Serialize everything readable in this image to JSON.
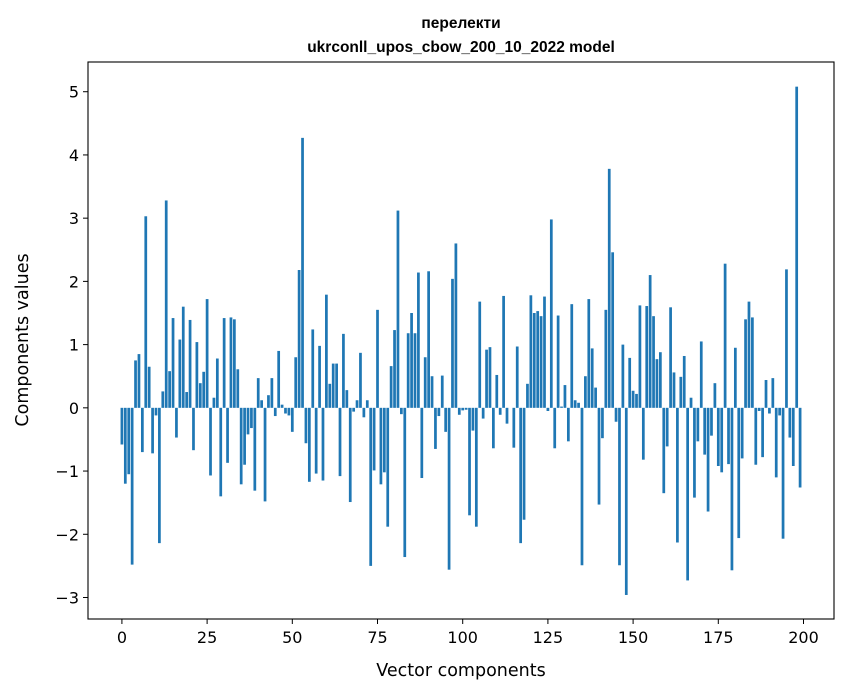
{
  "chart_data": {
    "type": "bar",
    "title_lines": [
      "перелекти",
      "ukrconll_upos_cbow_200_10_2022 model"
    ],
    "xlabel": "Vector components",
    "ylabel": "Components values",
    "xlim": [
      -9.95,
      208.95
    ],
    "ylim": [
      -3.34,
      5.47
    ],
    "xticks": [
      0,
      25,
      50,
      75,
      100,
      125,
      150,
      175,
      200
    ],
    "yticks": [
      -3,
      -2,
      -1,
      0,
      1,
      2,
      3,
      4,
      5
    ],
    "grid": false,
    "legend": "none",
    "bar_color": "#1f77b4",
    "x": [
      0,
      1,
      2,
      3,
      4,
      5,
      6,
      7,
      8,
      9,
      10,
      11,
      12,
      13,
      14,
      15,
      16,
      17,
      18,
      19,
      20,
      21,
      22,
      23,
      24,
      25,
      26,
      27,
      28,
      29,
      30,
      31,
      32,
      33,
      34,
      35,
      36,
      37,
      38,
      39,
      40,
      41,
      42,
      43,
      44,
      45,
      46,
      47,
      48,
      49,
      50,
      51,
      52,
      53,
      54,
      55,
      56,
      57,
      58,
      59,
      60,
      61,
      62,
      63,
      64,
      65,
      66,
      67,
      68,
      69,
      70,
      71,
      72,
      73,
      74,
      75,
      76,
      77,
      78,
      79,
      80,
      81,
      82,
      83,
      84,
      85,
      86,
      87,
      88,
      89,
      90,
      91,
      92,
      93,
      94,
      95,
      96,
      97,
      98,
      99,
      100,
      101,
      102,
      103,
      104,
      105,
      106,
      107,
      108,
      109,
      110,
      111,
      112,
      113,
      114,
      115,
      116,
      117,
      118,
      119,
      120,
      121,
      122,
      123,
      124,
      125,
      126,
      127,
      128,
      129,
      130,
      131,
      132,
      133,
      134,
      135,
      136,
      137,
      138,
      139,
      140,
      141,
      142,
      143,
      144,
      145,
      146,
      147,
      148,
      149,
      150,
      151,
      152,
      153,
      154,
      155,
      156,
      157,
      158,
      159,
      160,
      161,
      162,
      163,
      164,
      165,
      166,
      167,
      168,
      169,
      170,
      171,
      172,
      173,
      174,
      175,
      176,
      177,
      178,
      179,
      180,
      181,
      182,
      183,
      184,
      185,
      186,
      187,
      188,
      189,
      190,
      191,
      192,
      193,
      194,
      195,
      196,
      197,
      198,
      199
    ],
    "values": [
      -0.58,
      -1.2,
      -1.05,
      -2.48,
      0.75,
      0.85,
      -0.7,
      3.03,
      0.65,
      -0.72,
      -0.12,
      -2.14,
      0.26,
      3.28,
      0.58,
      1.42,
      -0.47,
      1.08,
      1.6,
      0.25,
      1.39,
      -0.67,
      1.04,
      0.39,
      0.57,
      1.72,
      -1.07,
      0.16,
      0.78,
      -1.4,
      1.42,
      -0.87,
      1.43,
      1.4,
      0.61,
      -1.21,
      -0.9,
      -0.42,
      -0.32,
      -1.31,
      0.47,
      0.12,
      -1.48,
      0.2,
      0.47,
      -0.13,
      0.9,
      0.05,
      -0.09,
      -0.12,
      -0.38,
      0.8,
      2.18,
      4.27,
      -0.56,
      -1.17,
      1.24,
      -1.04,
      0.98,
      -1.15,
      1.79,
      0.38,
      0.7,
      0.7,
      -1.08,
      1.17,
      0.28,
      -1.49,
      -0.06,
      0.12,
      0.87,
      -0.15,
      0.12,
      -2.5,
      -0.99,
      1.55,
      -1.21,
      -1.02,
      -1.88,
      0.66,
      1.23,
      3.12,
      -0.1,
      -2.36,
      1.18,
      1.5,
      1.18,
      2.14,
      -1.11,
      0.8,
      2.16,
      0.5,
      -0.65,
      -0.13,
      0.51,
      -0.38,
      -2.56,
      2.04,
      2.6,
      -0.11,
      -0.04,
      -0.03,
      -1.7,
      -0.36,
      -1.88,
      1.68,
      -0.17,
      0.92,
      0.96,
      -0.64,
      0.52,
      -0.11,
      1.77,
      -0.25,
      0.0,
      -0.63,
      0.97,
      -2.14,
      -1.77,
      0.38,
      1.78,
      1.5,
      1.53,
      1.45,
      1.76,
      -0.05,
      2.98,
      -0.64,
      1.46,
      0.02,
      0.36,
      -0.53,
      1.64,
      0.12,
      0.08,
      -2.49,
      0.5,
      1.72,
      0.94,
      0.32,
      -1.53,
      -0.48,
      1.55,
      3.78,
      2.46,
      -0.22,
      -2.49,
      1.0,
      -2.96,
      0.79,
      0.27,
      0.22,
      1.62,
      -0.82,
      1.61,
      2.1,
      1.45,
      0.77,
      0.88,
      -1.35,
      -0.61,
      1.59,
      0.56,
      -2.13,
      0.49,
      0.82,
      -2.73,
      0.16,
      -1.42,
      -0.53,
      1.05,
      -0.74,
      -1.64,
      -0.44,
      0.39,
      -0.92,
      -1.02,
      2.28,
      -0.89,
      -2.57,
      0.95,
      -2.06,
      -0.8,
      1.4,
      1.68,
      1.43,
      -0.9,
      -0.05,
      -0.78,
      0.44,
      -0.09,
      0.47,
      -1.1,
      -0.12,
      -2.07,
      2.19,
      -0.47,
      -0.92,
      5.08,
      -1.26
    ]
  }
}
